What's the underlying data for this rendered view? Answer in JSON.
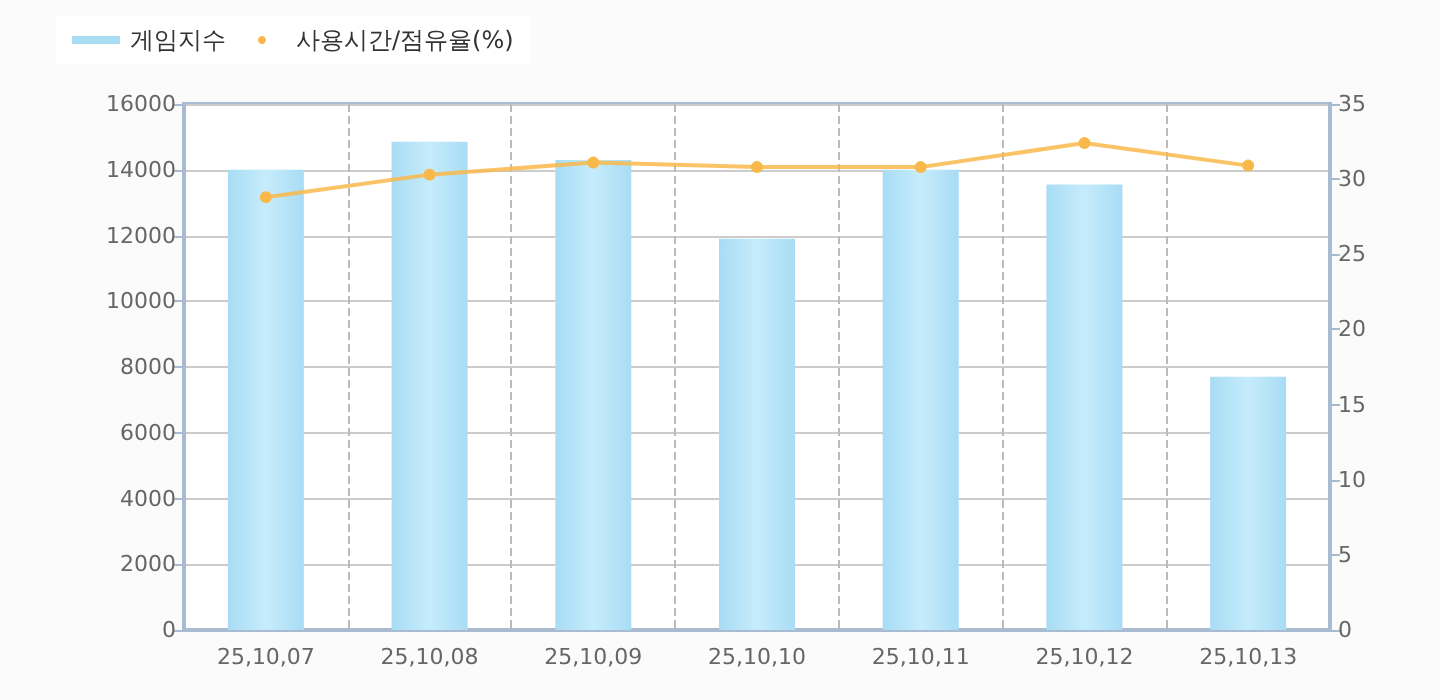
{
  "chart_data": {
    "type": "bar",
    "categories": [
      "25,10,07",
      "25,10,08",
      "25,10,09",
      "25,10,10",
      "25,10,11",
      "25,10,12",
      "25,10,13"
    ],
    "series": [
      {
        "name": "게임지수",
        "color": "#a8dcf5",
        "values": [
          14000,
          14850,
          14300,
          11900,
          14000,
          13550,
          7700
        ]
      },
      {
        "name": "사용시간/점유율(%)",
        "type": "line",
        "axis": "y2",
        "color": "#f9b94a",
        "values": [
          28.8,
          30.3,
          31.1,
          30.8,
          30.8,
          32.4,
          30.9
        ]
      }
    ],
    "ylim": [
      0,
      16000
    ],
    "yticks": [
      0,
      2000,
      4000,
      6000,
      8000,
      10000,
      12000,
      14000,
      16000
    ],
    "y2lim": [
      0,
      35
    ],
    "y2ticks": [
      0,
      5,
      10,
      15,
      20,
      25,
      30,
      35
    ],
    "grid": true,
    "legend": "top left",
    "marker": "circle",
    "line_style": "solid"
  }
}
